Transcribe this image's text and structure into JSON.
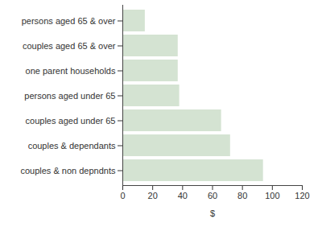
{
  "chart_data": {
    "type": "bar",
    "orientation": "horizontal",
    "categories": [
      "persons aged 65 & over",
      "couples aged 65 & over",
      "one parent households",
      "persons aged under 65",
      "couples aged under 65",
      "couples & dependants",
      "couples & non depndnts"
    ],
    "values": [
      15,
      37,
      37,
      38,
      66,
      72,
      94
    ],
    "color": "#d4e3d2",
    "x_label": "$",
    "xlim": [
      0,
      120
    ],
    "xticks": [
      0,
      20,
      40,
      60,
      80,
      100,
      120
    ],
    "grid": false
  }
}
